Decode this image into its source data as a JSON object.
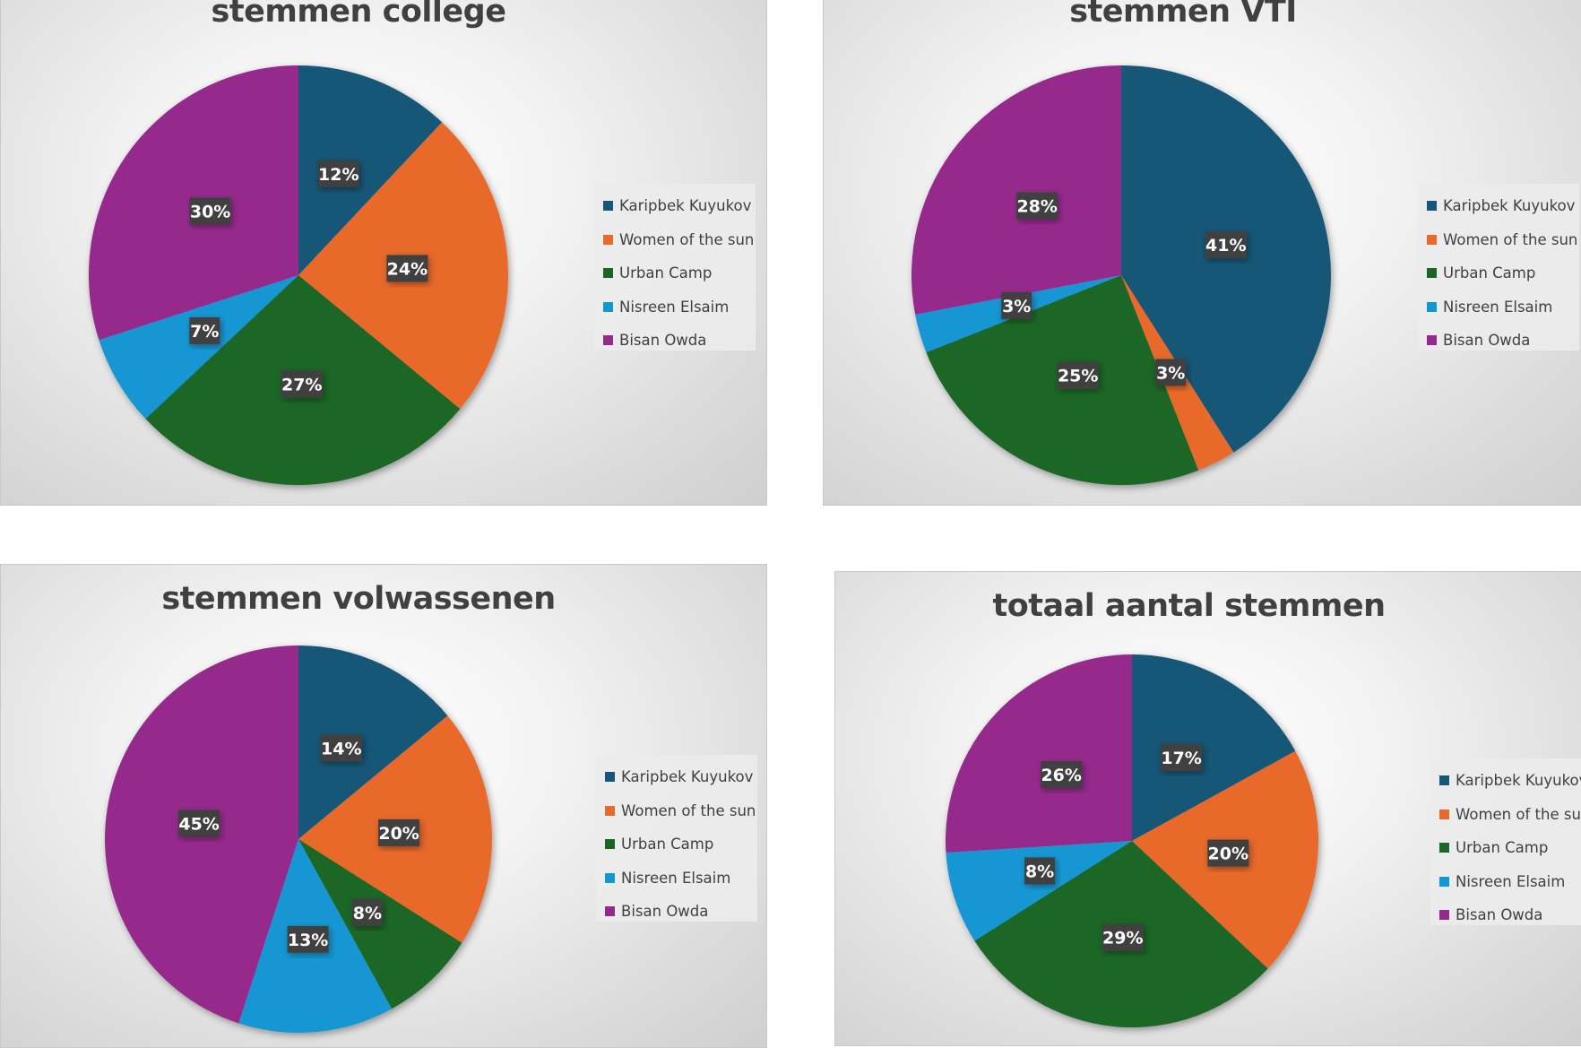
{
  "colors": {
    "Karipbek Kuyukov": "#175676",
    "Women of the sun": "#E8692A",
    "Urban Camp": "#1A6625",
    "Nisreen Elsaim": "#1397D3",
    "Bisan Owda": "#952A8C"
  },
  "chart_data": [
    {
      "type": "pie",
      "title": "stemmen college",
      "categories": [
        "Karipbek Kuyukov",
        "Women of the sun",
        "Urban Camp",
        "Nisreen Elsaim",
        "Bisan Owda"
      ],
      "values": [
        12,
        24,
        27,
        7,
        30
      ],
      "labels": [
        "12%",
        "24%",
        "27%",
        "7%",
        "30%"
      ],
      "legend": "right"
    },
    {
      "type": "pie",
      "title": "stemmen VTI",
      "categories": [
        "Karipbek Kuyukov",
        "Women of the sun",
        "Urban Camp",
        "Nisreen Elsaim",
        "Bisan Owda"
      ],
      "values": [
        41,
        3,
        25,
        3,
        28
      ],
      "labels": [
        "41%",
        "3%",
        "25%",
        "3%",
        "28%"
      ],
      "legend": "right"
    },
    {
      "type": "pie",
      "title": "stemmen volwassenen",
      "categories": [
        "Karipbek Kuyukov",
        "Women of the sun",
        "Urban Camp",
        "Nisreen Elsaim",
        "Bisan Owda"
      ],
      "values": [
        14,
        20,
        8,
        13,
        45
      ],
      "labels": [
        "14%",
        "20%",
        "8%",
        "13%",
        "45%"
      ],
      "legend": "right"
    },
    {
      "type": "pie",
      "title": "totaal aantal stemmen",
      "categories": [
        "Karipbek Kuyukov",
        "Women of the sun",
        "Urban Camp",
        "Nisreen Elsaim",
        "Bisan Owda"
      ],
      "values": [
        17,
        20,
        29,
        8,
        26
      ],
      "labels": [
        "17%",
        "20%",
        "29%",
        "8%",
        "26%"
      ],
      "legend": "right"
    }
  ]
}
